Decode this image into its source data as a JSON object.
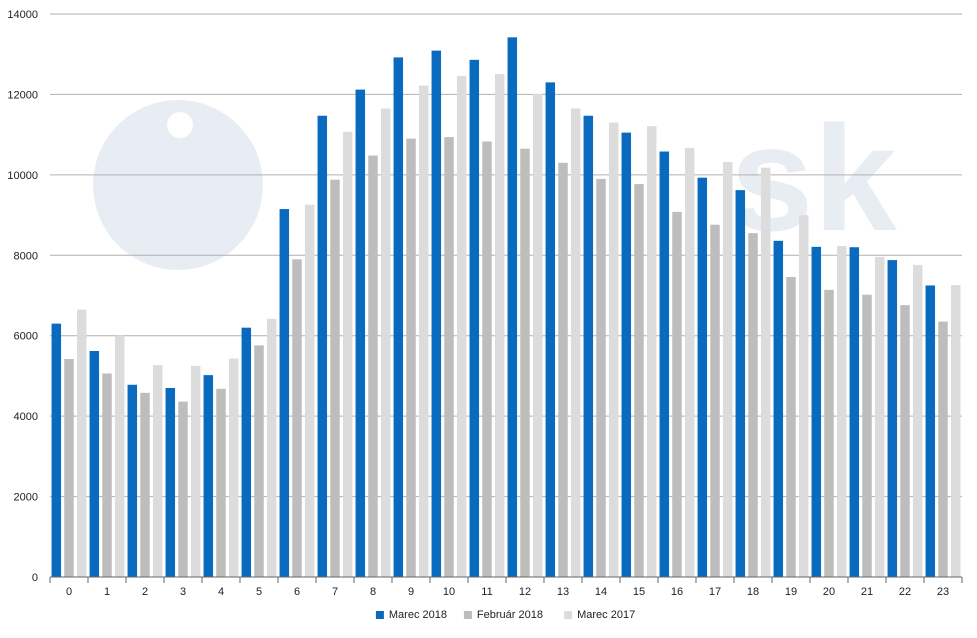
{
  "chart_data": {
    "type": "bar",
    "title": "",
    "xlabel": "",
    "ylabel": "",
    "ylim": [
      0,
      14000
    ],
    "yticks": [
      0,
      2000,
      4000,
      6000,
      8000,
      10000,
      12000,
      14000
    ],
    "grid": true,
    "legend_position": "bottom-center",
    "categories": [
      "0",
      "1",
      "2",
      "3",
      "4",
      "5",
      "6",
      "7",
      "8",
      "9",
      "10",
      "11",
      "12",
      "13",
      "14",
      "15",
      "16",
      "17",
      "18",
      "19",
      "20",
      "21",
      "22",
      "23"
    ],
    "series": [
      {
        "name": "Marec 2018",
        "color": "#0a6abf",
        "values": [
          6300,
          5620,
          4780,
          4700,
          5020,
          6200,
          9150,
          11470,
          12120,
          12920,
          13090,
          12860,
          13420,
          12300,
          11470,
          11050,
          10580,
          9930,
          9620,
          8360,
          8210,
          8200,
          7880,
          7250
        ]
      },
      {
        "name": "Február 2018",
        "color": "#bdbdbd",
        "values": [
          5420,
          5060,
          4580,
          4360,
          4680,
          5760,
          7900,
          9880,
          10480,
          10900,
          10940,
          10830,
          10650,
          10300,
          9900,
          9770,
          9080,
          8760,
          8550,
          7460,
          7140,
          7020,
          6760,
          6350
        ]
      },
      {
        "name": "Marec 2017",
        "color": "#dcdcdc",
        "values": [
          6650,
          6000,
          5270,
          5250,
          5430,
          6420,
          9260,
          11070,
          11650,
          12220,
          12460,
          12510,
          12010,
          11650,
          11300,
          11210,
          10670,
          10320,
          10180,
          9000,
          8230,
          7960,
          7760,
          7260
        ]
      }
    ]
  },
  "watermark": {
    "text": "sk",
    "color": "#e8edf3"
  },
  "colors": {
    "axis": "#666666",
    "grid": "#b0b0b0",
    "tick_text": "#222222"
  }
}
